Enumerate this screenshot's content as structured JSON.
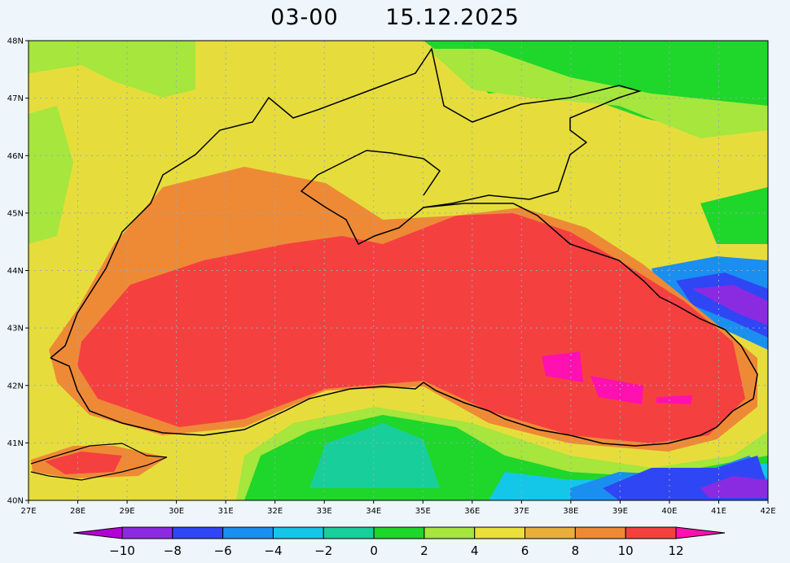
{
  "header": {
    "time": "03-00",
    "date": "15.12.2025"
  },
  "map": {
    "lat_labels": [
      "48N",
      "47N",
      "46N",
      "45N",
      "44N",
      "43N",
      "42N",
      "41N",
      "40N"
    ],
    "lon_labels": [
      "27E",
      "28E",
      "29E",
      "30E",
      "31E",
      "32E",
      "33E",
      "34E",
      "35E",
      "36E",
      "37E",
      "38E",
      "39E",
      "40E",
      "41E",
      "42E"
    ]
  },
  "colorbar": {
    "labels": [
      "-10",
      "-8",
      "-6",
      "-4",
      "-2",
      "0",
      "2",
      "4",
      "6",
      "8",
      "10",
      "12"
    ],
    "colors": [
      "#b300d6",
      "#8a2be2",
      "#2f46f5",
      "#1a8ff0",
      "#14c7e8",
      "#18cf9b",
      "#1fd62a",
      "#a6e63d",
      "#eae03a",
      "#e8b03a",
      "#ee8a36",
      "#f54040",
      "#ff10b0"
    ]
  }
}
